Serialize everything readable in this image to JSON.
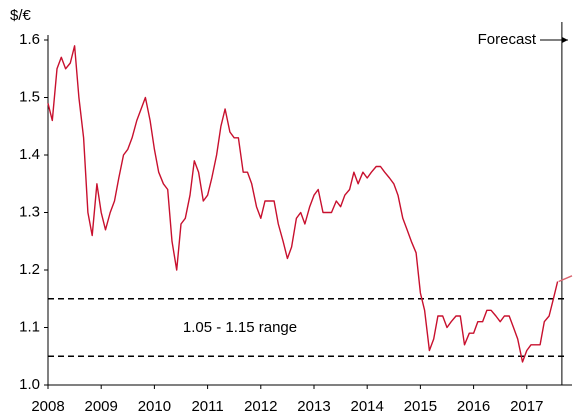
{
  "chart_data": {
    "type": "line",
    "ylabel": "$/€",
    "annotation": "1.05 - 1.15 range",
    "forecast_label": "Forecast",
    "forecast_start": 2017.66,
    "hlines": [
      1.15,
      1.05
    ],
    "xlim": [
      2008,
      2017.85
    ],
    "xticks": [
      2008,
      2009,
      2010,
      2011,
      2012,
      2013,
      2014,
      2015,
      2016,
      2017
    ],
    "ylim": [
      1.0,
      1.6
    ],
    "yticks": [
      {
        "value": 1.0,
        "label": "1.0"
      },
      1.1,
      1.2,
      1.3,
      1.4,
      1.5,
      1.6
    ],
    "series": [
      {
        "color": "#c8102e",
        "x": [
          2008.0,
          2008.08,
          2008.17,
          2008.25,
          2008.33,
          2008.42,
          2008.5,
          2008.58,
          2008.67,
          2008.75,
          2008.83,
          2008.92,
          2009.0,
          2009.08,
          2009.17,
          2009.25,
          2009.33,
          2009.42,
          2009.5,
          2009.58,
          2009.67,
          2009.75,
          2009.83,
          2009.92,
          2010.0,
          2010.08,
          2010.17,
          2010.25,
          2010.33,
          2010.42,
          2010.5,
          2010.58,
          2010.67,
          2010.75,
          2010.83,
          2010.92,
          2011.0,
          2011.08,
          2011.17,
          2011.25,
          2011.33,
          2011.42,
          2011.5,
          2011.58,
          2011.67,
          2011.75,
          2011.83,
          2011.92,
          2012.0,
          2012.08,
          2012.17,
          2012.25,
          2012.33,
          2012.42,
          2012.5,
          2012.58,
          2012.67,
          2012.75,
          2012.83,
          2012.92,
          2013.0,
          2013.08,
          2013.17,
          2013.25,
          2013.33,
          2013.42,
          2013.5,
          2013.58,
          2013.67,
          2013.75,
          2013.83,
          2013.92,
          2014.0,
          2014.08,
          2014.17,
          2014.25,
          2014.33,
          2014.42,
          2014.5,
          2014.58,
          2014.67,
          2014.75,
          2014.83,
          2014.92,
          2015.0,
          2015.08,
          2015.17,
          2015.25,
          2015.33,
          2015.42,
          2015.5,
          2015.58,
          2015.67,
          2015.75,
          2015.83,
          2015.92,
          2016.0,
          2016.08,
          2016.17,
          2016.25,
          2016.33,
          2016.42,
          2016.5,
          2016.58,
          2016.67,
          2016.75,
          2016.83,
          2016.92,
          2017.0,
          2017.08,
          2017.17,
          2017.25,
          2017.33,
          2017.42,
          2017.5,
          2017.58
        ],
        "values": [
          1.49,
          1.46,
          1.55,
          1.57,
          1.55,
          1.56,
          1.59,
          1.5,
          1.43,
          1.3,
          1.26,
          1.35,
          1.3,
          1.27,
          1.3,
          1.32,
          1.36,
          1.4,
          1.41,
          1.43,
          1.46,
          1.48,
          1.5,
          1.46,
          1.41,
          1.37,
          1.35,
          1.34,
          1.25,
          1.2,
          1.28,
          1.29,
          1.33,
          1.39,
          1.37,
          1.32,
          1.33,
          1.36,
          1.4,
          1.45,
          1.48,
          1.44,
          1.43,
          1.43,
          1.37,
          1.37,
          1.35,
          1.31,
          1.29,
          1.32,
          1.32,
          1.32,
          1.28,
          1.25,
          1.22,
          1.24,
          1.29,
          1.3,
          1.28,
          1.31,
          1.33,
          1.34,
          1.3,
          1.3,
          1.3,
          1.32,
          1.31,
          1.33,
          1.34,
          1.37,
          1.35,
          1.37,
          1.36,
          1.37,
          1.38,
          1.38,
          1.37,
          1.36,
          1.35,
          1.33,
          1.29,
          1.27,
          1.25,
          1.23,
          1.16,
          1.13,
          1.06,
          1.08,
          1.12,
          1.12,
          1.1,
          1.11,
          1.12,
          1.12,
          1.07,
          1.09,
          1.09,
          1.11,
          1.11,
          1.13,
          1.13,
          1.12,
          1.11,
          1.12,
          1.12,
          1.1,
          1.08,
          1.04,
          1.06,
          1.07,
          1.07,
          1.07,
          1.11,
          1.12,
          1.15,
          1.18
        ]
      },
      {
        "color": "#d9646f",
        "x": [
          2017.6,
          2017.85
        ],
        "values": [
          1.18,
          1.19
        ]
      }
    ]
  }
}
